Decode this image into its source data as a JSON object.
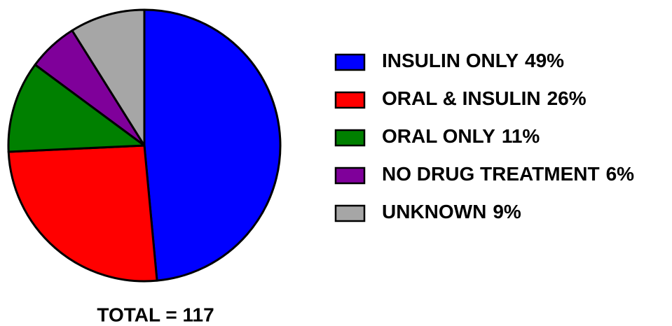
{
  "chart_data": {
    "type": "pie",
    "categories": [
      "INSULIN ONLY",
      "ORAL & INSULIN",
      "ORAL ONLY",
      "NO DRUG TREATMENT",
      "UNKNOWN"
    ],
    "values": [
      49,
      26,
      11,
      6,
      9
    ],
    "value_labels": [
      "49%",
      "26%",
      "11%",
      "6%",
      "9%"
    ],
    "colors": [
      "#0000ff",
      "#ff0000",
      "#008000",
      "#7f009a",
      "#a6a6a6"
    ],
    "annotation": "TOTAL = 117",
    "legend": "right"
  }
}
